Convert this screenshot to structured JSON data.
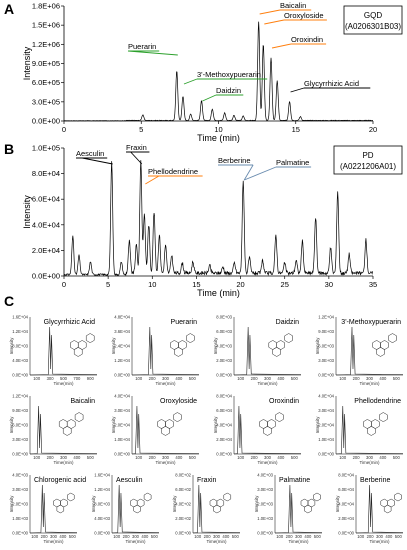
{
  "panels": {
    "A": {
      "label": "A",
      "id_box": [
        "GQD",
        "(A0206301B03)"
      ]
    },
    "B": {
      "label": "B",
      "id_box": [
        "PD",
        "(A0221206A01)"
      ]
    },
    "C": {
      "label": "C"
    }
  },
  "chart_data": [
    {
      "type": "line",
      "panel": "A",
      "xlabel": "Time (min)",
      "ylabel": "Intensity",
      "xlim": [
        0,
        20
      ],
      "ylim": [
        0,
        1800000
      ],
      "x_ticks": [
        "0",
        "5",
        "10",
        "15",
        "20"
      ],
      "y_ticks": [
        "0.0E+00",
        "3.0E+05",
        "6.0E+05",
        "9.0E+05",
        "1.2E+06",
        "1.5E+06",
        "1.8E+06"
      ],
      "x_tick_values": [
        0,
        5,
        10,
        15,
        20
      ],
      "y_tick_values": [
        0,
        300000,
        600000,
        900000,
        1200000,
        1500000,
        1800000
      ],
      "peaks": [
        [
          5.1,
          90000
        ],
        [
          7.3,
          780000
        ],
        [
          7.7,
          380000
        ],
        [
          8.2,
          100000
        ],
        [
          8.9,
          310000
        ],
        [
          9.6,
          180000
        ],
        [
          10.4,
          120000
        ],
        [
          11.0,
          80000
        ],
        [
          11.6,
          70000
        ],
        [
          12.6,
          1550000
        ],
        [
          12.9,
          1200000
        ],
        [
          13.4,
          980000
        ],
        [
          13.8,
          620000
        ],
        [
          14.6,
          300000
        ],
        [
          15.3,
          60000
        ]
      ],
      "annotations": [
        {
          "text": "Puerarin",
          "x": 7.3,
          "color": "#2ca02c"
        },
        {
          "text": "3'-Methoxypuerarin",
          "x": 7.7,
          "color": "#2ca02c"
        },
        {
          "text": "Daidzin",
          "x": 8.9,
          "color": "#2ca02c"
        },
        {
          "text": "Baicalin",
          "x": 12.6,
          "color": "#ff7f0e"
        },
        {
          "text": "Oroxyloside",
          "x": 12.9,
          "color": "#ff7f0e"
        },
        {
          "text": "Oroxindin",
          "x": 13.4,
          "color": "#ff7f0e"
        },
        {
          "text": "Glycyrrhizic Acid",
          "x": 14.6,
          "color": "#000000"
        }
      ]
    },
    {
      "type": "line",
      "panel": "B",
      "xlabel": "Time (min)",
      "ylabel": "Intensity",
      "xlim": [
        0,
        35
      ],
      "ylim": [
        0,
        100000
      ],
      "x_ticks": [
        "0",
        "5",
        "10",
        "15",
        "20",
        "25",
        "30",
        "35"
      ],
      "y_ticks": [
        "0.0E+00",
        "2.0E+04",
        "4.0E+04",
        "6.0E+04",
        "8.0E+04",
        "1.0E+05"
      ],
      "x_tick_values": [
        0,
        5,
        10,
        15,
        20,
        25,
        30,
        35
      ],
      "y_tick_values": [
        0,
        20000,
        40000,
        60000,
        80000,
        100000
      ],
      "peaks": [
        [
          1.0,
          30000
        ],
        [
          1.7,
          15000
        ],
        [
          3.0,
          10000
        ],
        [
          5.4,
          88000
        ],
        [
          6.5,
          10000
        ],
        [
          7.4,
          25000
        ],
        [
          8.2,
          22000
        ],
        [
          8.7,
          88000
        ],
        [
          9.1,
          46000
        ],
        [
          9.6,
          38000
        ],
        [
          10.2,
          48000
        ],
        [
          10.8,
          30000
        ],
        [
          11.5,
          22000
        ],
        [
          12.2,
          14000
        ],
        [
          13.4,
          8000
        ],
        [
          14.6,
          9000
        ],
        [
          16.5,
          6000
        ],
        [
          18.0,
          5000
        ],
        [
          19.3,
          8000
        ],
        [
          20.3,
          72000
        ],
        [
          21.0,
          12000
        ],
        [
          22.5,
          10000
        ],
        [
          24.0,
          30000
        ],
        [
          25.0,
          8000
        ],
        [
          26.3,
          10000
        ],
        [
          27.0,
          25000
        ],
        [
          28.5,
          44000
        ],
        [
          30.2,
          20000
        ],
        [
          31.0,
          64000
        ],
        [
          32.3,
          15000
        ],
        [
          34.2,
          26000
        ]
      ],
      "annotations": [
        {
          "text": "Aesculin",
          "x": 5.4,
          "color": "#000000"
        },
        {
          "text": "Fraxin",
          "x": 8.7,
          "color": "#000000"
        },
        {
          "text": "Phellodendrine",
          "x": 9.1,
          "color": "#ff7f0e"
        },
        {
          "text": "Berberine",
          "x": 20.3,
          "color": "#6a8caf"
        },
        {
          "text": "Palmatine",
          "x": 20.3,
          "color": "#6a8caf"
        }
      ]
    }
  ],
  "mini": [
    {
      "title": "Glycyrrhizic Acid",
      "y_ticks": [
        "0.0E+00",
        "4.0E+03",
        "8.0E+03",
        "1.2E+04",
        "1.6E+04"
      ],
      "x_ticks": [
        "100",
        "300",
        "500",
        "700",
        "900"
      ],
      "peak": 0.55
    },
    {
      "title": "Puerarin",
      "y_ticks": [
        "0.0E+00",
        "1.2E+04",
        "2.4E+04",
        "3.6E+04",
        "4.8E+04"
      ],
      "x_ticks": [
        "100",
        "200",
        "300",
        "400",
        "500"
      ],
      "peak": 0.5
    },
    {
      "title": "Daidzin",
      "y_ticks": [
        "0.0E+00",
        "2.0E+03",
        "4.0E+03",
        "6.0E+03",
        "8.0E+03"
      ],
      "x_ticks": [
        "100",
        "200",
        "300",
        "400",
        "500"
      ],
      "peak": 0.4
    },
    {
      "title": "3'-Methoxypuerarin",
      "y_ticks": [
        "0.0E+00",
        "3.0E+03",
        "6.0E+03",
        "9.0E+03",
        "1.2E+04"
      ],
      "x_ticks": [
        "100",
        "200",
        "300",
        "400",
        "500"
      ],
      "peak": 0.45
    },
    {
      "title": "Baicalin",
      "y_ticks": [
        "0.0E+00",
        "3.0E+03",
        "6.0E+03",
        "9.0E+03",
        "1.2E+04"
      ],
      "x_ticks": [
        "100",
        "200",
        "300",
        "400",
        "500"
      ],
      "peak": 0.25
    },
    {
      "title": "Oroxyloside",
      "y_ticks": [
        "0.0E+00",
        "1.0E+04",
        "2.0E+04",
        "3.0E+04",
        "4.0E+04"
      ],
      "x_ticks": [
        "100",
        "200",
        "300",
        "400",
        "500"
      ],
      "peak": 0.15
    },
    {
      "title": "Oroxindin",
      "y_ticks": [
        "0.0E+00",
        "2.0E+04",
        "4.0E+04",
        "6.0E+04",
        "8.0E+04"
      ],
      "x_ticks": [
        "100",
        "200",
        "300",
        "400",
        "500"
      ],
      "peak": 0.15
    },
    {
      "title": "Phellodendrine",
      "y_ticks": [
        "0.0E+00",
        "1.0E+04",
        "2.0E+04",
        "3.0E+04",
        "4.0E+04"
      ],
      "x_ticks": [
        "100",
        "200",
        "300",
        "400",
        "500"
      ],
      "peak": 0.2
    },
    {
      "title": "Chlorogenic acid",
      "y_ticks": [
        "0.0E+00",
        "1.0E+03",
        "2.0E+03",
        "3.0E+03",
        "4.0E+03"
      ],
      "x_ticks": [
        "100",
        "200",
        "300",
        "400",
        "500"
      ],
      "peak": 0.5
    },
    {
      "title": "Aesculin",
      "y_ticks": [
        "0.0E+00",
        "4.0E+03",
        "8.0E+03",
        "1.2E+04",
        "1.6E+04"
      ],
      "x_ticks": [
        "100",
        "200",
        "300",
        "400",
        "500"
      ],
      "peak": 0.3
    },
    {
      "title": "Fraxin",
      "y_ticks": [
        "0.0E+00",
        "2.0E+02",
        "4.0E+02",
        "6.0E+02",
        "8.0E+02"
      ],
      "x_ticks": [
        "100",
        "200",
        "300",
        "400",
        "500"
      ],
      "peak": 0.25
    },
    {
      "title": "Palmatine",
      "y_ticks": [
        "0.0E+00",
        "1.0E+03",
        "2.0E+03",
        "3.0E+03",
        "4.0E+03"
      ],
      "x_ticks": [
        "100",
        "200",
        "300",
        "400",
        "500"
      ],
      "peak": 0.6
    },
    {
      "title": "Berberine",
      "y_ticks": [
        "0.0E+00",
        "2.0E+04",
        "4.0E+04",
        "6.0E+04",
        "8.0E+04"
      ],
      "x_ticks": [
        "100",
        "200",
        "300",
        "400",
        "500"
      ],
      "peak": 0.55
    }
  ],
  "mini_axes": {
    "xlabel": "Time(min)",
    "ylabel": "Intensity"
  }
}
